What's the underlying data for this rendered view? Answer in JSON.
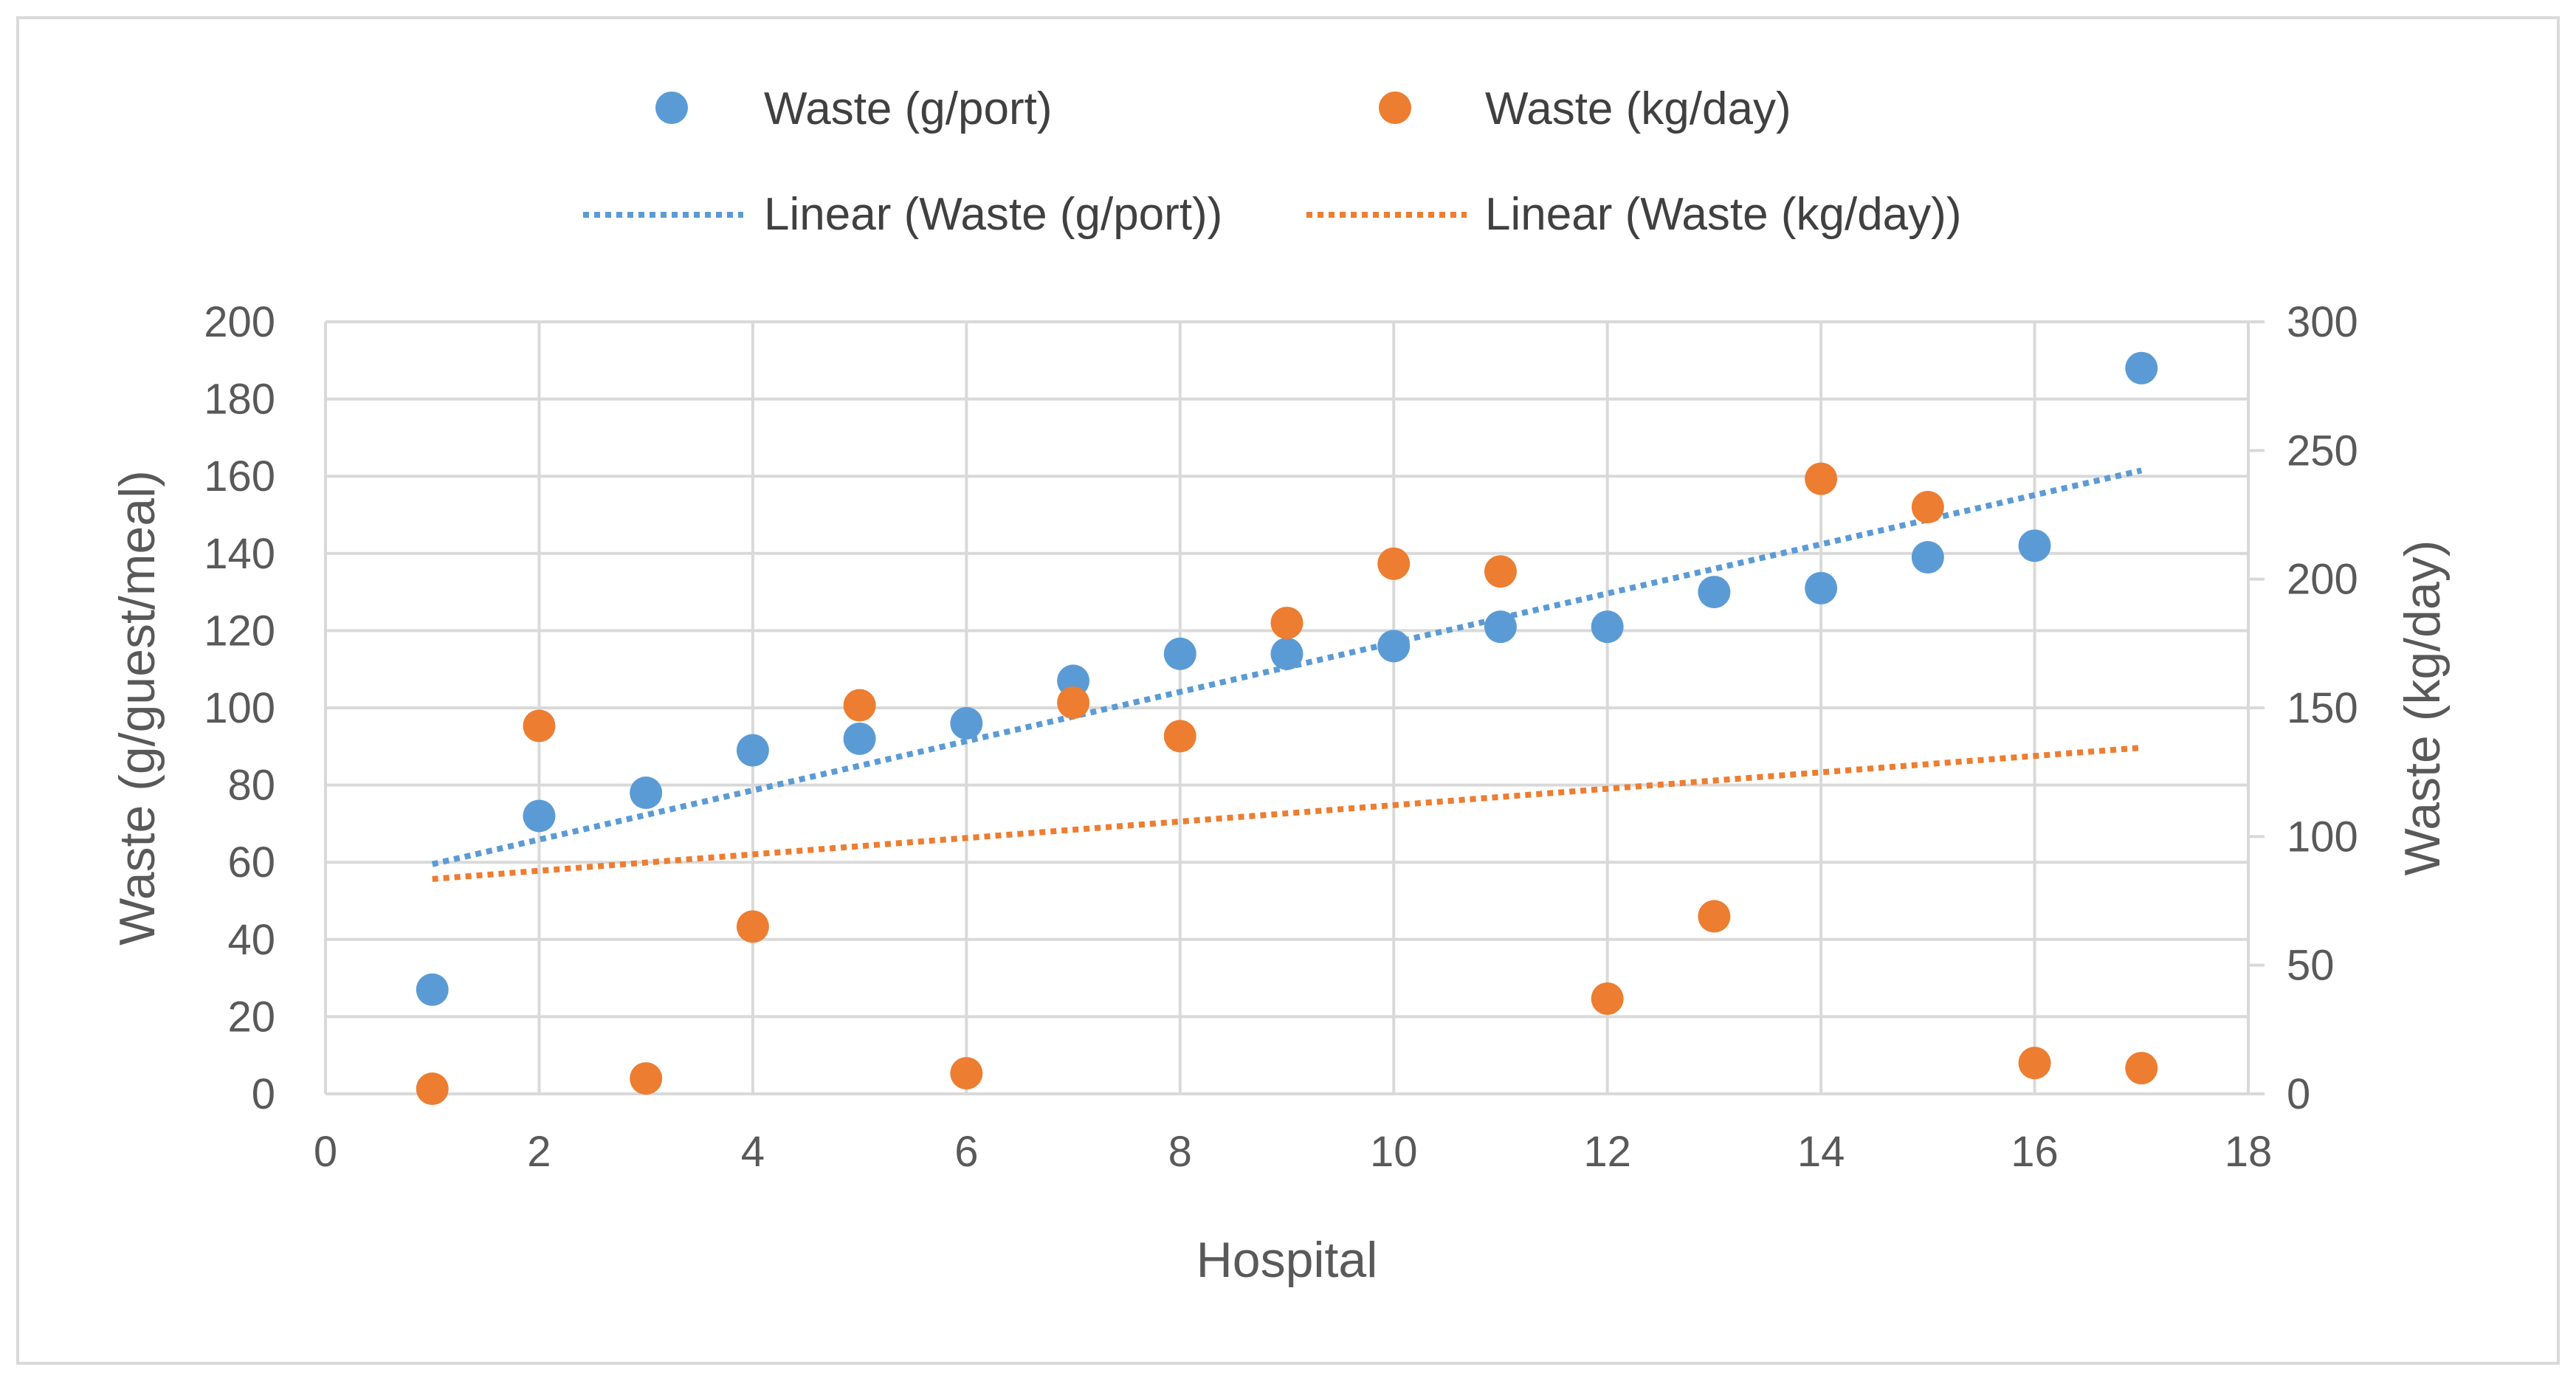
{
  "chart_data": {
    "type": "scatter",
    "title": "",
    "xlabel": "Hospital",
    "ylabel": "Waste (g/guest/meal)",
    "y2label": "Waste (kg/day)",
    "xlim": [
      0,
      18
    ],
    "ylim": [
      0,
      200
    ],
    "y2lim": [
      0,
      300
    ],
    "xticks": [
      0,
      2,
      4,
      6,
      8,
      10,
      12,
      14,
      16,
      18
    ],
    "yticks": [
      0,
      20,
      40,
      60,
      80,
      100,
      120,
      140,
      160,
      180,
      200
    ],
    "y2ticks": [
      0,
      50,
      100,
      150,
      200,
      250,
      300
    ],
    "grid": true,
    "legend_position": "top",
    "colors": {
      "waste_g_port": "#5b9bd5",
      "waste_kg_day": "#ed7d31",
      "grid": "#d9d9d9",
      "frame": "#d9d9d9",
      "text": "#595959"
    },
    "series": [
      {
        "name": "Waste (g/port)",
        "axis": "left",
        "color": "#5b9bd5",
        "x": [
          1,
          2,
          3,
          4,
          5,
          6,
          7,
          8,
          9,
          10,
          11,
          12,
          13,
          14,
          15,
          16,
          17
        ],
        "y": [
          27,
          72,
          78,
          89,
          92,
          96,
          107,
          114,
          114,
          116,
          121,
          121,
          130,
          131,
          139,
          142,
          188
        ]
      },
      {
        "name": "Waste (kg/day)",
        "axis": "right",
        "color": "#ed7d31",
        "x": [
          1,
          2,
          3,
          4,
          5,
          6,
          7,
          8,
          9,
          10,
          11,
          12,
          13,
          14,
          15,
          16,
          17
        ],
        "y": [
          2,
          143,
          6,
          65,
          151,
          8,
          152,
          139,
          183,
          206,
          203,
          37,
          69,
          239,
          228,
          12,
          10
        ]
      }
    ],
    "trendlines": [
      {
        "name": "Linear (Waste (g/port))",
        "axis": "left",
        "color": "#5b9bd5",
        "x": [
          1,
          17
        ],
        "y": [
          59.5,
          161.5
        ]
      },
      {
        "name": "Linear (Waste (kg/day))",
        "axis": "right",
        "color": "#ed7d31",
        "x": [
          1,
          17
        ],
        "y": [
          83.5,
          134.5
        ]
      }
    ],
    "legend": [
      {
        "label": "Waste (g/port)",
        "kind": "marker",
        "color": "#5b9bd5"
      },
      {
        "label": "Waste (kg/day)",
        "kind": "marker",
        "color": "#ed7d31"
      },
      {
        "label": "Linear (Waste (g/port))",
        "kind": "dotted-line",
        "color": "#5b9bd5"
      },
      {
        "label": "Linear (Waste (kg/day))",
        "kind": "dotted-line",
        "color": "#ed7d31"
      }
    ]
  }
}
